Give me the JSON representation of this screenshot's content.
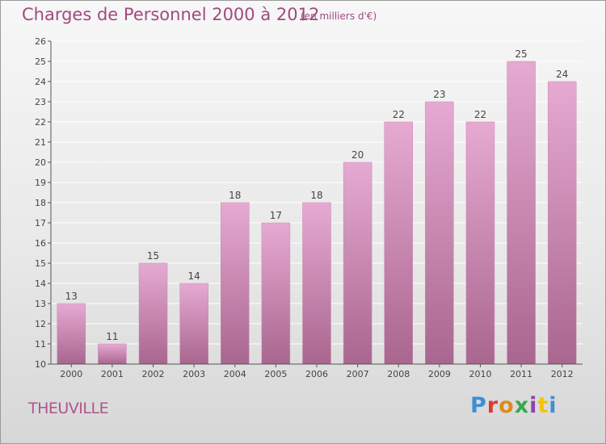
{
  "header": {
    "title": "Charges de Personnel 2000 à 2012",
    "subtitle": "(en milliers d'€)"
  },
  "footer": {
    "commune": "THEUVILLE",
    "logo": "Proxiti",
    "logo_colors": [
      "#3d8fd6",
      "#e0392b",
      "#e08a1e",
      "#39a84a",
      "#8e44ad",
      "#f1c40f",
      "#3d8fd6"
    ]
  },
  "colors": {
    "bar_top": "#e6aad2",
    "bar_bottom": "#a9668f",
    "grid": "#ffffff",
    "axis": "#555555",
    "text": "#444444"
  },
  "chart_data": {
    "type": "bar",
    "title": "Charges de Personnel 2000 à 2012",
    "subtitle": "(en milliers d'€)",
    "categories": [
      "2000",
      "2001",
      "2002",
      "2003",
      "2004",
      "2005",
      "2006",
      "2007",
      "2008",
      "2009",
      "2010",
      "2011",
      "2012"
    ],
    "values": [
      13,
      11,
      15,
      14,
      18,
      17,
      18,
      20,
      22,
      23,
      22,
      25,
      24
    ],
    "ylim": [
      10,
      26
    ],
    "yticks": [
      10,
      11,
      12,
      13,
      14,
      15,
      16,
      17,
      18,
      19,
      20,
      21,
      22,
      23,
      24,
      25,
      26
    ],
    "grid": true,
    "data_labels": true
  }
}
